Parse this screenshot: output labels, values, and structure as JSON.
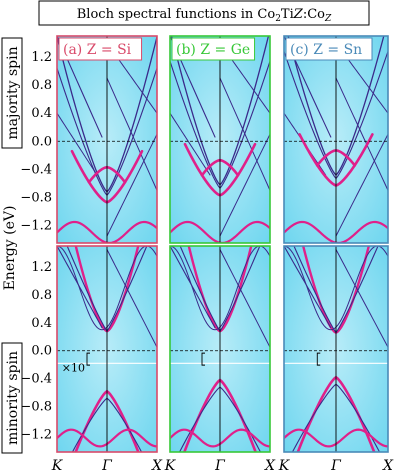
{
  "chart_data": {
    "type": "line",
    "title": "Bloch spectral functions in Co2TiZ:CoZ",
    "ylabel": "Energy (eV)",
    "ylim_top": [
      -1.45,
      1.5
    ],
    "ylim_bottom": [
      -1.45,
      1.5
    ],
    "yticks": [
      {
        "v": 1.2,
        "label": "1.2"
      },
      {
        "v": 0.8,
        "label": "0.8"
      },
      {
        "v": 0.4,
        "label": "0.4"
      },
      {
        "v": 0.0,
        "label": "0.0"
      },
      {
        "v": -0.4,
        "label": "−0.4"
      },
      {
        "v": -0.8,
        "label": "−0.8"
      },
      {
        "v": -1.2,
        "label": "−1.2"
      }
    ],
    "fermi_level": 0.0,
    "spin_labels": {
      "majority": "majority spin",
      "minority": "minority spin"
    },
    "x_path": [
      "K",
      "Γ",
      "X"
    ],
    "x_positions": [
      0,
      0.5,
      1
    ],
    "panel_colors": [
      "#d94a6a",
      "#38c838",
      "#4a8ab8"
    ],
    "band_color": "#3a2a8a",
    "highlight_color": "#e0208a",
    "panels": [
      {
        "id": "a",
        "label": "(a) Z = Si",
        "emin_up": -0.72,
        "emin_dn": -0.58,
        "cb_dn": 0.28,
        "scale_note": "×10"
      },
      {
        "id": "b",
        "label": "(b) Z = Ge",
        "emin_up": -0.62,
        "emin_dn": -0.42,
        "cb_dn": 0.28,
        "scale_note": ""
      },
      {
        "id": "c",
        "label": "(c) Z = Sn",
        "emin_up": -0.48,
        "emin_dn": -0.38,
        "cb_dn": 0.26,
        "scale_note": ""
      }
    ]
  }
}
